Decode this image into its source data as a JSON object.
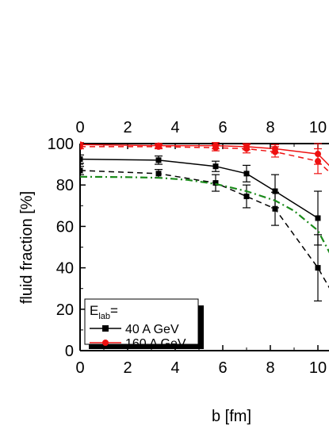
{
  "chart_data": {
    "type": "line",
    "xlabel": "b [fm]",
    "ylabel": "fluid fraction [%]",
    "xlim": [
      0,
      10.2
    ],
    "ylim": [
      0,
      100
    ],
    "x_ticks": [
      "0",
      "2",
      "4",
      "6",
      "8",
      "10"
    ],
    "x_ticks_top": [
      "0",
      "2",
      "4",
      "6",
      "8",
      "10"
    ],
    "y_ticks": [
      "0",
      "20",
      "40",
      "60",
      "80",
      "100"
    ],
    "legend": {
      "title_main": "E",
      "title_sub": "lab",
      "title_suffix": "=",
      "placement": "bottom-left",
      "entries": [
        "40 A GeV",
        "160 A GeV"
      ]
    },
    "series": [
      {
        "name": "40 A GeV",
        "style": "solid",
        "color": "#000000",
        "marker": "square",
        "x": [
          0.0,
          3.3,
          5.7,
          7.0,
          8.2,
          10.0
        ],
        "y": [
          92.5,
          92.0,
          89.0,
          85.5,
          77.0,
          64.0
        ],
        "err": [
          2.0,
          2.0,
          2.5,
          4.0,
          8.0,
          13.0
        ]
      },
      {
        "name": "40 A GeV",
        "style": "dashed",
        "color": "#000000",
        "marker": "square",
        "x": [
          0.0,
          3.3,
          5.7,
          7.0,
          8.2,
          10.0,
          10.6
        ],
        "y": [
          87.0,
          85.5,
          81.0,
          74.5,
          68.5,
          40.0,
          28.0
        ],
        "err": [
          2.0,
          2.0,
          4.0,
          5.5,
          8.0,
          16.0,
          0
        ]
      },
      {
        "name": "160 A GeV",
        "style": "solid",
        "color": "#ee1111",
        "marker": "circle",
        "x": [
          0.0,
          3.3,
          5.7,
          7.0,
          8.2,
          10.0,
          10.6
        ],
        "y": [
          99.5,
          99.0,
          99.0,
          98.5,
          97.5,
          95.0,
          88.0
        ],
        "err": [
          1.0,
          1.0,
          1.5,
          1.5,
          2.0,
          5.0,
          0
        ]
      },
      {
        "name": "160 A GeV",
        "style": "dashed",
        "color": "#ee1111",
        "marker": "circle",
        "x": [
          0.0,
          3.3,
          5.7,
          7.0,
          8.2,
          10.0,
          10.6
        ],
        "y": [
          98.5,
          98.5,
          98.0,
          97.5,
          96.0,
          91.5,
          85.0
        ],
        "err": [
          1.0,
          1.0,
          1.5,
          2.0,
          2.5,
          6.0,
          0
        ]
      },
      {
        "name": "",
        "style": "dashdot",
        "color": "#1a8a1a",
        "marker": "none",
        "x": [
          0.0,
          2.0,
          3.3,
          4.5,
          5.7,
          7.0,
          8.2,
          9.0,
          10.0,
          10.6
        ],
        "y": [
          84.0,
          83.8,
          83.5,
          82.5,
          80.5,
          77.0,
          72.5,
          67.5,
          58.0,
          45.0
        ],
        "err": []
      }
    ]
  }
}
